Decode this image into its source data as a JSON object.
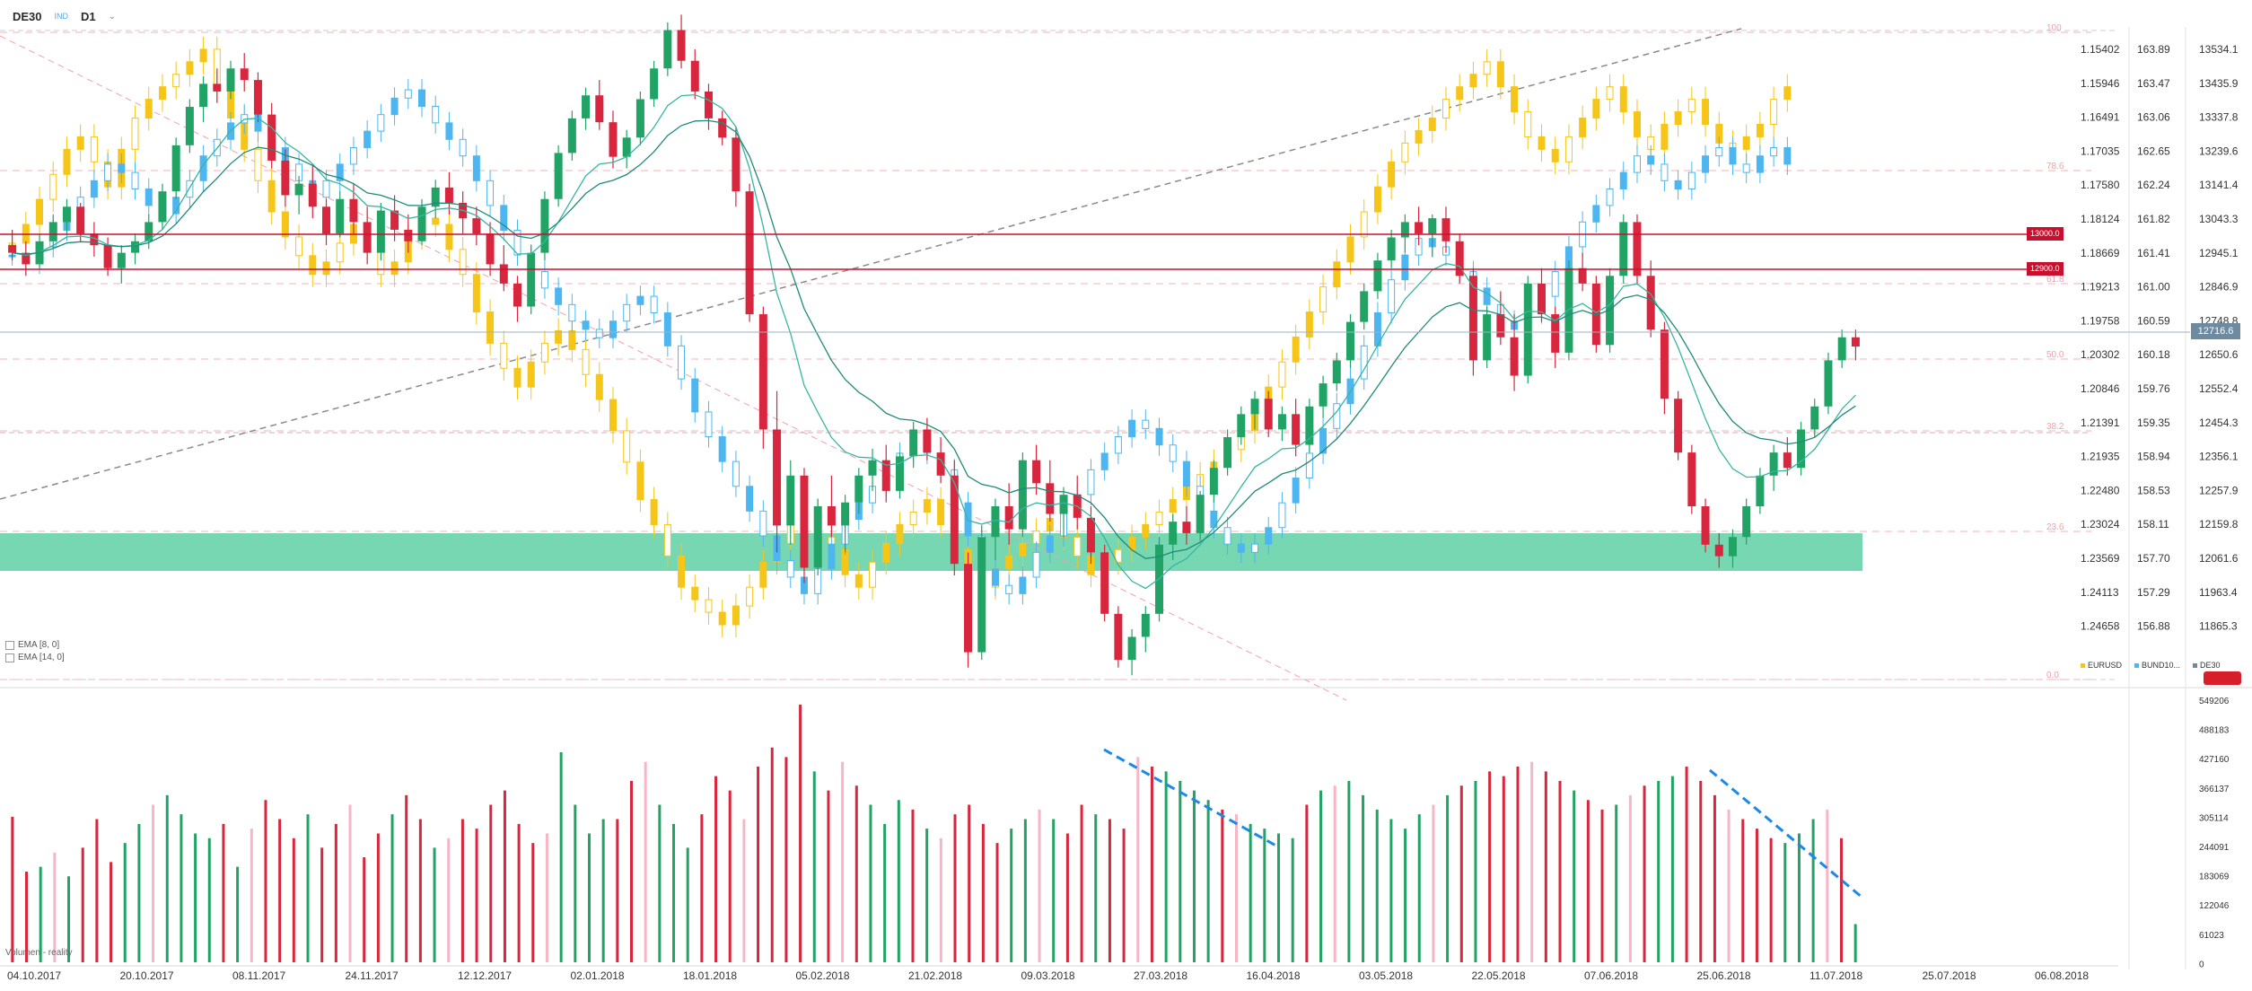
{
  "toolbar": {
    "symbol": "DE30",
    "badge": "IND",
    "timeframe": "D1",
    "dropdown_icon": "chevron-down-icon"
  },
  "axes": {
    "eurusd": [
      "1.15402",
      "1.15946",
      "1.16491",
      "1.17035",
      "1.17580",
      "1.18124",
      "1.18669",
      "1.19213",
      "1.19758",
      "1.20302",
      "1.20846",
      "1.21391",
      "1.21935",
      "1.22480",
      "1.23024",
      "1.23569",
      "1.24113",
      "1.24658"
    ],
    "bund": [
      "163.89",
      "163.47",
      "163.06",
      "162.65",
      "162.24",
      "161.82",
      "161.41",
      "161.00",
      "160.59",
      "160.18",
      "159.76",
      "159.35",
      "158.94",
      "158.53",
      "158.11",
      "157.70",
      "157.29",
      "156.88"
    ],
    "de30": [
      "13534.1",
      "13435.9",
      "13337.8",
      "13239.6",
      "13141.4",
      "13043.3",
      "12945.1",
      "12846.9",
      "12748.8",
      "12650.6",
      "12552.4",
      "12454.3",
      "12356.1",
      "12257.9",
      "12159.8",
      "12061.6",
      "11963.4",
      "11865.3"
    ],
    "volume": [
      "549206",
      "488183",
      "427160",
      "366137",
      "305114",
      "244091",
      "183069",
      "122046",
      "61023",
      "0"
    ]
  },
  "current_price": "12716.6",
  "levels": [
    {
      "label": "13000.0",
      "value": 13000
    },
    {
      "label": "12900.0",
      "value": 12900
    }
  ],
  "fib_labels": [
    "100",
    "78.6",
    "61.8",
    "50.0",
    "38.2",
    "23.6",
    "0.0"
  ],
  "date_labels": [
    "04.10.2017",
    "20.10.2017",
    "08.11.2017",
    "24.11.2017",
    "12.12.2017",
    "02.01.2018",
    "18.01.2018",
    "05.02.2018",
    "21.02.2018",
    "09.03.2018",
    "27.03.2018",
    "16.04.2018",
    "03.05.2018",
    "22.05.2018",
    "07.06.2018",
    "25.06.2018",
    "11.07.2018",
    "25.07.2018",
    "06.08.2018"
  ],
  "indicators": {
    "ema1": "EMA [8, 0]",
    "ema2": "EMA [14, 0]",
    "volume": "Volumen - reality"
  },
  "series_legend": [
    "EURUSD",
    "BUND10...",
    "DE30"
  ],
  "colors": {
    "bull": "#21a366",
    "bear": "#d7263d",
    "eurusd": "#f5c518",
    "bund": "#4db6f0",
    "ema": "#2a9d8f",
    "zone": "#5fd0a5",
    "level": "#c8102e"
  },
  "chart_data": {
    "type": "candlestick",
    "symbol": "DE30",
    "price_range": [
      11865.3,
      13534.1
    ],
    "support_zone": [
      12070,
      12135
    ],
    "levels": [
      13000,
      12900
    ],
    "candles": [
      [
        12980,
        13020,
        12940,
        12960
      ],
      [
        12960,
        12990,
        12900,
        12930
      ],
      [
        12930,
        13010,
        12920,
        12990
      ],
      [
        12990,
        13060,
        12970,
        13040
      ],
      [
        13040,
        13100,
        13010,
        13080
      ],
      [
        13080,
        13090,
        12990,
        13010
      ],
      [
        13010,
        13040,
        12950,
        12980
      ],
      [
        12980,
        13000,
        12900,
        12920
      ],
      [
        12920,
        12980,
        12880,
        12960
      ],
      [
        12960,
        13010,
        12930,
        12990
      ],
      [
        12990,
        13060,
        12970,
        13040
      ],
      [
        13040,
        13140,
        13020,
        13120
      ],
      [
        13120,
        13260,
        13100,
        13240
      ],
      [
        13240,
        13360,
        13220,
        13340
      ],
      [
        13340,
        13420,
        13300,
        13400
      ],
      [
        13400,
        13440,
        13350,
        13380
      ],
      [
        13380,
        13460,
        13360,
        13440
      ],
      [
        13440,
        13480,
        13380,
        13410
      ],
      [
        13410,
        13430,
        13300,
        13320
      ],
      [
        13320,
        13350,
        13180,
        13200
      ],
      [
        13200,
        13230,
        13080,
        13110
      ],
      [
        13110,
        13160,
        13060,
        13140
      ],
      [
        13140,
        13190,
        13050,
        13080
      ],
      [
        13080,
        13100,
        12980,
        13010
      ],
      [
        13010,
        13120,
        13000,
        13100
      ],
      [
        13100,
        13140,
        13010,
        13040
      ],
      [
        13040,
        13080,
        12930,
        12960
      ],
      [
        12960,
        13090,
        12940,
        13070
      ],
      [
        13070,
        13110,
        12990,
        13020
      ],
      [
        13020,
        13060,
        12960,
        12990
      ],
      [
        12990,
        13100,
        12980,
        13080
      ],
      [
        13080,
        13150,
        13050,
        13130
      ],
      [
        13130,
        13170,
        13060,
        13090
      ],
      [
        13090,
        13120,
        13010,
        13050
      ],
      [
        13050,
        13080,
        12980,
        13010
      ],
      [
        13010,
        13040,
        12900,
        12930
      ],
      [
        12930,
        12980,
        12860,
        12880
      ],
      [
        12880,
        12900,
        12780,
        12820
      ],
      [
        12820,
        12980,
        12800,
        12960
      ],
      [
        12960,
        13120,
        12940,
        13100
      ],
      [
        13100,
        13240,
        13080,
        13220
      ],
      [
        13220,
        13330,
        13200,
        13310
      ],
      [
        13310,
        13390,
        13280,
        13370
      ],
      [
        13370,
        13410,
        13280,
        13300
      ],
      [
        13300,
        13330,
        13180,
        13210
      ],
      [
        13210,
        13280,
        13180,
        13260
      ],
      [
        13260,
        13380,
        13240,
        13360
      ],
      [
        13360,
        13460,
        13340,
        13440
      ],
      [
        13440,
        13560,
        13420,
        13540
      ],
      [
        13540,
        13580,
        13440,
        13460
      ],
      [
        13460,
        13490,
        13360,
        13380
      ],
      [
        13380,
        13400,
        13280,
        13310
      ],
      [
        13310,
        13330,
        13240,
        13260
      ],
      [
        13260,
        13290,
        13080,
        13120
      ],
      [
        13120,
        13140,
        12780,
        12800
      ],
      [
        12800,
        12820,
        12450,
        12500
      ],
      [
        12500,
        12600,
        12180,
        12250
      ],
      [
        12250,
        12420,
        12200,
        12380
      ],
      [
        12380,
        12400,
        12100,
        12140
      ],
      [
        12140,
        12320,
        12120,
        12300
      ],
      [
        12300,
        12380,
        12220,
        12250
      ],
      [
        12250,
        12330,
        12180,
        12310
      ],
      [
        12310,
        12400,
        12280,
        12380
      ],
      [
        12380,
        12450,
        12340,
        12420
      ],
      [
        12420,
        12460,
        12310,
        12340
      ],
      [
        12340,
        12440,
        12320,
        12430
      ],
      [
        12430,
        12520,
        12400,
        12500
      ],
      [
        12500,
        12530,
        12420,
        12440
      ],
      [
        12440,
        12480,
        12360,
        12380
      ],
      [
        12380,
        12420,
        12120,
        12150
      ],
      [
        12150,
        12180,
        11880,
        11920
      ],
      [
        11920,
        12250,
        11900,
        12220
      ],
      [
        12220,
        12320,
        12160,
        12300
      ],
      [
        12300,
        12360,
        12200,
        12240
      ],
      [
        12240,
        12440,
        12220,
        12420
      ],
      [
        12420,
        12460,
        12330,
        12360
      ],
      [
        12360,
        12420,
        12260,
        12280
      ],
      [
        12280,
        12350,
        12220,
        12330
      ],
      [
        12330,
        12380,
        12240,
        12270
      ],
      [
        12270,
        12300,
        12150,
        12180
      ],
      [
        12180,
        12200,
        12000,
        12020
      ],
      [
        12020,
        12040,
        11880,
        11900
      ],
      [
        11900,
        11980,
        11860,
        11960
      ],
      [
        11960,
        12040,
        11920,
        12020
      ],
      [
        12020,
        12220,
        12000,
        12200
      ],
      [
        12200,
        12280,
        12160,
        12260
      ],
      [
        12260,
        12300,
        12200,
        12230
      ],
      [
        12230,
        12340,
        12210,
        12330
      ],
      [
        12330,
        12420,
        12310,
        12400
      ],
      [
        12400,
        12500,
        12380,
        12480
      ],
      [
        12480,
        12560,
        12460,
        12540
      ],
      [
        12540,
        12600,
        12500,
        12580
      ],
      [
        12580,
        12600,
        12480,
        12500
      ],
      [
        12500,
        12560,
        12470,
        12540
      ],
      [
        12540,
        12580,
        12430,
        12460
      ],
      [
        12460,
        12580,
        12440,
        12560
      ],
      [
        12560,
        12640,
        12530,
        12620
      ],
      [
        12620,
        12700,
        12600,
        12680
      ],
      [
        12680,
        12800,
        12660,
        12780
      ],
      [
        12780,
        12880,
        12760,
        12860
      ],
      [
        12860,
        12960,
        12840,
        12940
      ],
      [
        12940,
        13020,
        12920,
        13000
      ],
      [
        13000,
        13060,
        12960,
        13040
      ],
      [
        13040,
        13080,
        12980,
        13010
      ],
      [
        13010,
        13060,
        12950,
        13050
      ],
      [
        13050,
        13080,
        12960,
        12990
      ],
      [
        12990,
        13010,
        12880,
        12900
      ],
      [
        12900,
        12920,
        12640,
        12680
      ],
      [
        12680,
        12820,
        12660,
        12800
      ],
      [
        12800,
        12860,
        12720,
        12740
      ],
      [
        12740,
        12800,
        12600,
        12640
      ],
      [
        12640,
        12900,
        12620,
        12880
      ],
      [
        12880,
        12920,
        12780,
        12800
      ],
      [
        12800,
        12820,
        12660,
        12700
      ],
      [
        12700,
        12940,
        12680,
        12920
      ],
      [
        12920,
        12960,
        12860,
        12880
      ],
      [
        12880,
        12900,
        12700,
        12720
      ],
      [
        12720,
        12920,
        12700,
        12900
      ],
      [
        12900,
        13060,
        12880,
        13040
      ],
      [
        13040,
        13060,
        12880,
        12900
      ],
      [
        12900,
        12940,
        12740,
        12760
      ],
      [
        12760,
        12780,
        12540,
        12580
      ],
      [
        12580,
        12600,
        12420,
        12440
      ],
      [
        12440,
        12460,
        12280,
        12300
      ],
      [
        12300,
        12320,
        12180,
        12200
      ],
      [
        12200,
        12230,
        12140,
        12170
      ],
      [
        12170,
        12240,
        12140,
        12220
      ],
      [
        12220,
        12320,
        12200,
        12300
      ],
      [
        12300,
        12400,
        12280,
        12380
      ],
      [
        12380,
        12460,
        12340,
        12440
      ],
      [
        12440,
        12480,
        12380,
        12400
      ],
      [
        12400,
        12520,
        12380,
        12500
      ],
      [
        12500,
        12580,
        12480,
        12560
      ],
      [
        12560,
        12700,
        12540,
        12680
      ],
      [
        12680,
        12760,
        12660,
        12740
      ],
      [
        12740,
        12760,
        12680,
        12716
      ]
    ],
    "eurusd_close": [
      1.185,
      1.182,
      1.178,
      1.174,
      1.17,
      1.168,
      1.172,
      1.176,
      1.17,
      1.165,
      1.162,
      1.16,
      1.158,
      1.156,
      1.154,
      1.16,
      1.165,
      1.17,
      1.175,
      1.18,
      1.184,
      1.187,
      1.19,
      1.188,
      1.185,
      1.182,
      1.186,
      1.19,
      1.188,
      1.184,
      1.181,
      1.182,
      1.186,
      1.19,
      1.196,
      1.201,
      1.205,
      1.208,
      1.204,
      1.201,
      1.199,
      1.202,
      1.206,
      1.21,
      1.215,
      1.22,
      1.226,
      1.23,
      1.235,
      1.24,
      1.242,
      1.244,
      1.246,
      1.243,
      1.24,
      1.236,
      1.233,
      1.23,
      1.228,
      1.232,
      1.234,
      1.238,
      1.24,
      1.236,
      1.233,
      1.23,
      1.228,
      1.226,
      1.23,
      1.234,
      1.238,
      1.24,
      1.237,
      1.235,
      1.233,
      1.231,
      1.229,
      1.232,
      1.235,
      1.238,
      1.236,
      1.234,
      1.232,
      1.23,
      1.228,
      1.226,
      1.224,
      1.222,
      1.22,
      1.218,
      1.215,
      1.212,
      1.208,
      1.204,
      1.2,
      1.196,
      1.192,
      1.188,
      1.184,
      1.18,
      1.176,
      1.172,
      1.169,
      1.167,
      1.165,
      1.162,
      1.16,
      1.158,
      1.156,
      1.16,
      1.164,
      1.168,
      1.17,
      1.172,
      1.168,
      1.165,
      1.162,
      1.16,
      1.164,
      1.168,
      1.17,
      1.166,
      1.164,
      1.162,
      1.166,
      1.169,
      1.17,
      1.168,
      1.166,
      1.162,
      1.16
    ],
    "bund_close": [
      161.4,
      161.3,
      161.5,
      161.7,
      161.9,
      162.1,
      162.3,
      162.5,
      162.4,
      162.2,
      162.0,
      161.9,
      162.1,
      162.3,
      162.6,
      162.8,
      163.0,
      163.1,
      162.9,
      162.7,
      162.5,
      162.3,
      162.1,
      162.3,
      162.5,
      162.7,
      162.9,
      163.1,
      163.3,
      163.4,
      163.2,
      163.0,
      162.8,
      162.6,
      162.3,
      162.0,
      161.7,
      161.4,
      161.2,
      161.0,
      160.8,
      160.6,
      160.5,
      160.4,
      160.6,
      160.8,
      160.9,
      160.7,
      160.3,
      159.9,
      159.5,
      159.2,
      158.9,
      158.6,
      158.3,
      158.0,
      157.7,
      157.5,
      157.3,
      157.6,
      157.9,
      158.2,
      158.4,
      158.6,
      158.8,
      159.0,
      159.2,
      159.0,
      158.8,
      158.4,
      158.0,
      157.6,
      157.4,
      157.3,
      157.5,
      157.8,
      158.0,
      158.3,
      158.5,
      158.8,
      159.0,
      159.2,
      159.4,
      159.3,
      159.1,
      158.9,
      158.6,
      158.3,
      158.1,
      157.9,
      157.8,
      157.9,
      158.1,
      158.4,
      158.7,
      159.0,
      159.3,
      159.6,
      159.9,
      160.3,
      160.7,
      161.1,
      161.4,
      161.6,
      161.5,
      161.4,
      161.2,
      161.0,
      160.8,
      160.6,
      160.5,
      160.7,
      160.9,
      161.2,
      161.5,
      161.8,
      162.0,
      162.2,
      162.4,
      162.6,
      162.5,
      162.3,
      162.2,
      162.4,
      162.6,
      162.7,
      162.5,
      162.4,
      162.6,
      162.7,
      162.5
    ],
    "ema8": [],
    "ema14": [],
    "volume": [
      305000,
      190000,
      200000,
      230000,
      180000,
      240000,
      300000,
      210000,
      250000,
      290000,
      330000,
      350000,
      310000,
      270000,
      260000,
      290000,
      200000,
      280000,
      340000,
      300000,
      260000,
      310000,
      240000,
      290000,
      330000,
      220000,
      270000,
      310000,
      350000,
      300000,
      240000,
      260000,
      300000,
      280000,
      330000,
      360000,
      290000,
      250000,
      270000,
      440000,
      330000,
      270000,
      300000,
      300000,
      380000,
      420000,
      330000,
      290000,
      240000,
      310000,
      390000,
      360000,
      300000,
      410000,
      450000,
      430000,
      540000,
      400000,
      360000,
      420000,
      370000,
      330000,
      290000,
      340000,
      320000,
      280000,
      260000,
      310000,
      330000,
      290000,
      250000,
      280000,
      300000,
      320000,
      300000,
      270000,
      330000,
      310000,
      300000,
      280000,
      430000,
      410000,
      400000,
      380000,
      360000,
      340000,
      320000,
      310000,
      290000,
      280000,
      270000,
      260000,
      330000,
      360000,
      370000,
      380000,
      350000,
      320000,
      300000,
      280000,
      310000,
      330000,
      350000,
      370000,
      380000,
      400000,
      390000,
      410000,
      420000,
      400000,
      380000,
      360000,
      340000,
      320000,
      330000,
      350000,
      370000,
      380000,
      390000,
      410000,
      380000,
      350000,
      320000,
      300000,
      280000,
      260000,
      250000,
      270000,
      300000,
      320000,
      260000,
      80000
    ]
  }
}
